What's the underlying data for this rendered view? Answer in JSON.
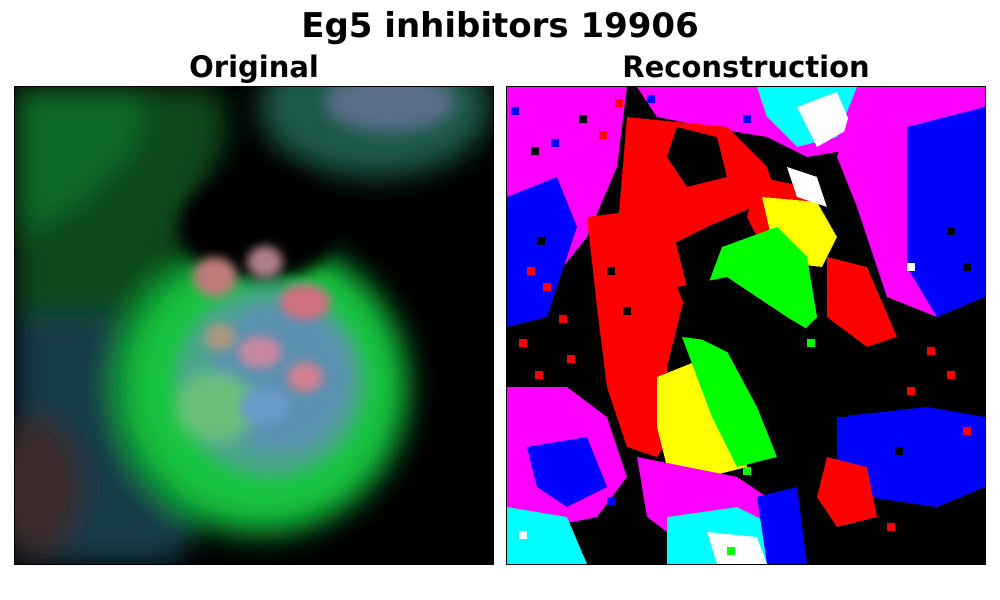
{
  "figure": {
    "title": "Eg5 inhibitors 19906"
  },
  "panels": [
    {
      "title": "Original",
      "image": "blurred fluorescence microscopy crop of a round cell",
      "dominant_colors": [
        "#0a8a2a",
        "#1fd24a",
        "#3a7aa8",
        "#d07a8a",
        "#000000"
      ]
    },
    {
      "title": "Reconstruction",
      "image": "noisy pixelated segmentation map",
      "dominant_colors": [
        "#ff0000",
        "#00ff00",
        "#ffff00",
        "#0000ff",
        "#ff00ff",
        "#00ffff",
        "#ffffff",
        "#000000"
      ]
    }
  ]
}
